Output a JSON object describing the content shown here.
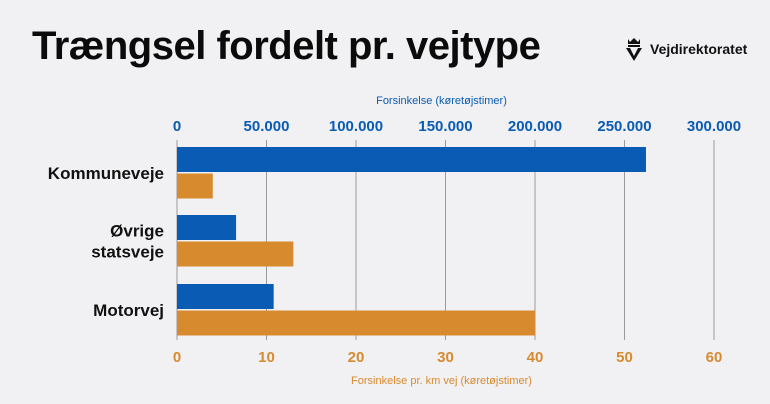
{
  "header": {
    "title": "Trængsel fordelt pr. vejtype",
    "brand": "Vejdirektoratet",
    "brand_icon": "crown-v-logo-icon"
  },
  "colors": {
    "blue": "#0a5bb4",
    "orange": "#d88a2f",
    "grid": "#9a9a9a",
    "background": "#f1f1f3"
  },
  "chart_data": {
    "type": "bar",
    "orientation": "horizontal",
    "categories": [
      "Kommuneveje",
      "Øvrige\nstatsveje",
      "Motorvej"
    ],
    "series": [
      {
        "axis": "top",
        "values": [
          262000,
          33000,
          54000
        ]
      },
      {
        "axis": "bottom",
        "values": [
          4,
          13,
          40
        ]
      }
    ],
    "x_top": {
      "label": "Forsinkelse (køretøjstimer)",
      "range": [
        0,
        300000
      ],
      "ticks": [
        0,
        50000,
        100000,
        150000,
        200000,
        250000,
        300000
      ],
      "tick_labels": [
        "0",
        "50.000",
        "100.000",
        "150.000",
        "200.000",
        "250.000",
        "300.000"
      ]
    },
    "x_bottom": {
      "label": "Forsinkelse pr. km vej (køretøjstimer)",
      "range": [
        0,
        60
      ],
      "ticks": [
        0,
        10,
        20,
        30,
        40,
        50,
        60
      ],
      "tick_labels": [
        "0",
        "10",
        "20",
        "30",
        "40",
        "50",
        "60"
      ]
    },
    "grid": true
  }
}
